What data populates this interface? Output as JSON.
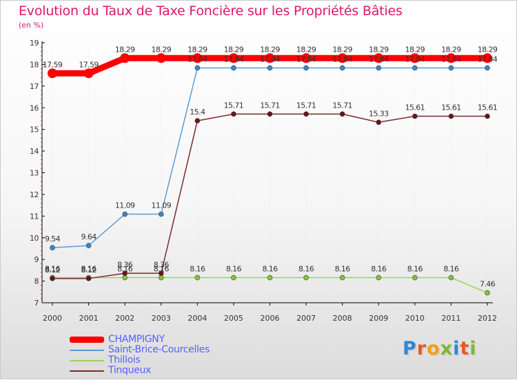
{
  "brand": {
    "logo_text": "Proxiti",
    "letter_colors": [
      "#2f86d6",
      "#e8562a",
      "#f2a100",
      "#7ab82f",
      "#2f86d6",
      "#e8562a",
      "#7ab82f"
    ]
  },
  "chart_data": {
    "type": "line",
    "title": "Evolution du Taux de Taxe Foncière sur les Propriétés Bâties",
    "ylabel": "(en %)",
    "xlabel": "",
    "ylim": [
      7,
      19
    ],
    "yticks": [
      "7",
      "8",
      "9",
      "10",
      "11",
      "12",
      "13",
      "14",
      "15",
      "16",
      "17",
      "18",
      "19"
    ],
    "categories": [
      "2000",
      "2001",
      "2002",
      "2003",
      "2004",
      "2005",
      "2006",
      "2007",
      "2008",
      "2009",
      "2010",
      "2011",
      "2012"
    ],
    "legend_position": "bottom-left",
    "series": [
      {
        "name": "CHAMPIGNY",
        "color": "#ff0000",
        "thick": true,
        "values": [
          17.59,
          17.59,
          18.29,
          18.29,
          18.29,
          18.29,
          18.29,
          18.29,
          18.29,
          18.29,
          18.29,
          18.29,
          18.29
        ],
        "labels": [
          "17.59",
          "17.59",
          "18.29",
          "18.29",
          "18.29",
          "18.29",
          "18.29",
          "18.29",
          "18.29",
          "18.29",
          "18.29",
          "18.29",
          "18.29"
        ]
      },
      {
        "name": "Saint-Brice-Courcelles",
        "color": "#5b9bd5",
        "point_color": "#3a86c8",
        "thick": false,
        "values": [
          9.54,
          9.64,
          11.09,
          11.09,
          17.84,
          17.84,
          17.84,
          17.84,
          17.84,
          17.84,
          17.84,
          17.84,
          17.84
        ],
        "labels": [
          "9.54",
          "9.64",
          "11.09",
          "11.09",
          "17.84",
          "17.84",
          "17.84",
          "17.84",
          "17.84",
          "17.84",
          "17.84",
          "17.84",
          "17.84"
        ]
      },
      {
        "name": "Thillois",
        "color": "#9ad35a",
        "point_color": "#7ec43a",
        "thick": false,
        "values": [
          8.16,
          8.16,
          8.16,
          8.16,
          8.16,
          8.16,
          8.16,
          8.16,
          8.16,
          8.16,
          8.16,
          8.16,
          7.46
        ],
        "labels": [
          "8.16",
          "8.16",
          "8.16",
          "8.16",
          "8.16",
          "8.16",
          "8.16",
          "8.16",
          "8.16",
          "8.16",
          "8.16",
          "8.16",
          "7.46"
        ]
      },
      {
        "name": "Tinqueux",
        "color": "#7a2a2a",
        "point_color": "#6b1414",
        "thick": false,
        "values": [
          8.12,
          8.12,
          8.36,
          8.36,
          15.4,
          15.71,
          15.71,
          15.71,
          15.71,
          15.33,
          15.61,
          15.61,
          15.61
        ],
        "labels": [
          "8.12",
          "8.12",
          "8.36",
          "8.36",
          "15.4",
          "15.71",
          "15.71",
          "15.71",
          "15.71",
          "15.33",
          "15.61",
          "15.61",
          "15.61"
        ]
      }
    ]
  }
}
